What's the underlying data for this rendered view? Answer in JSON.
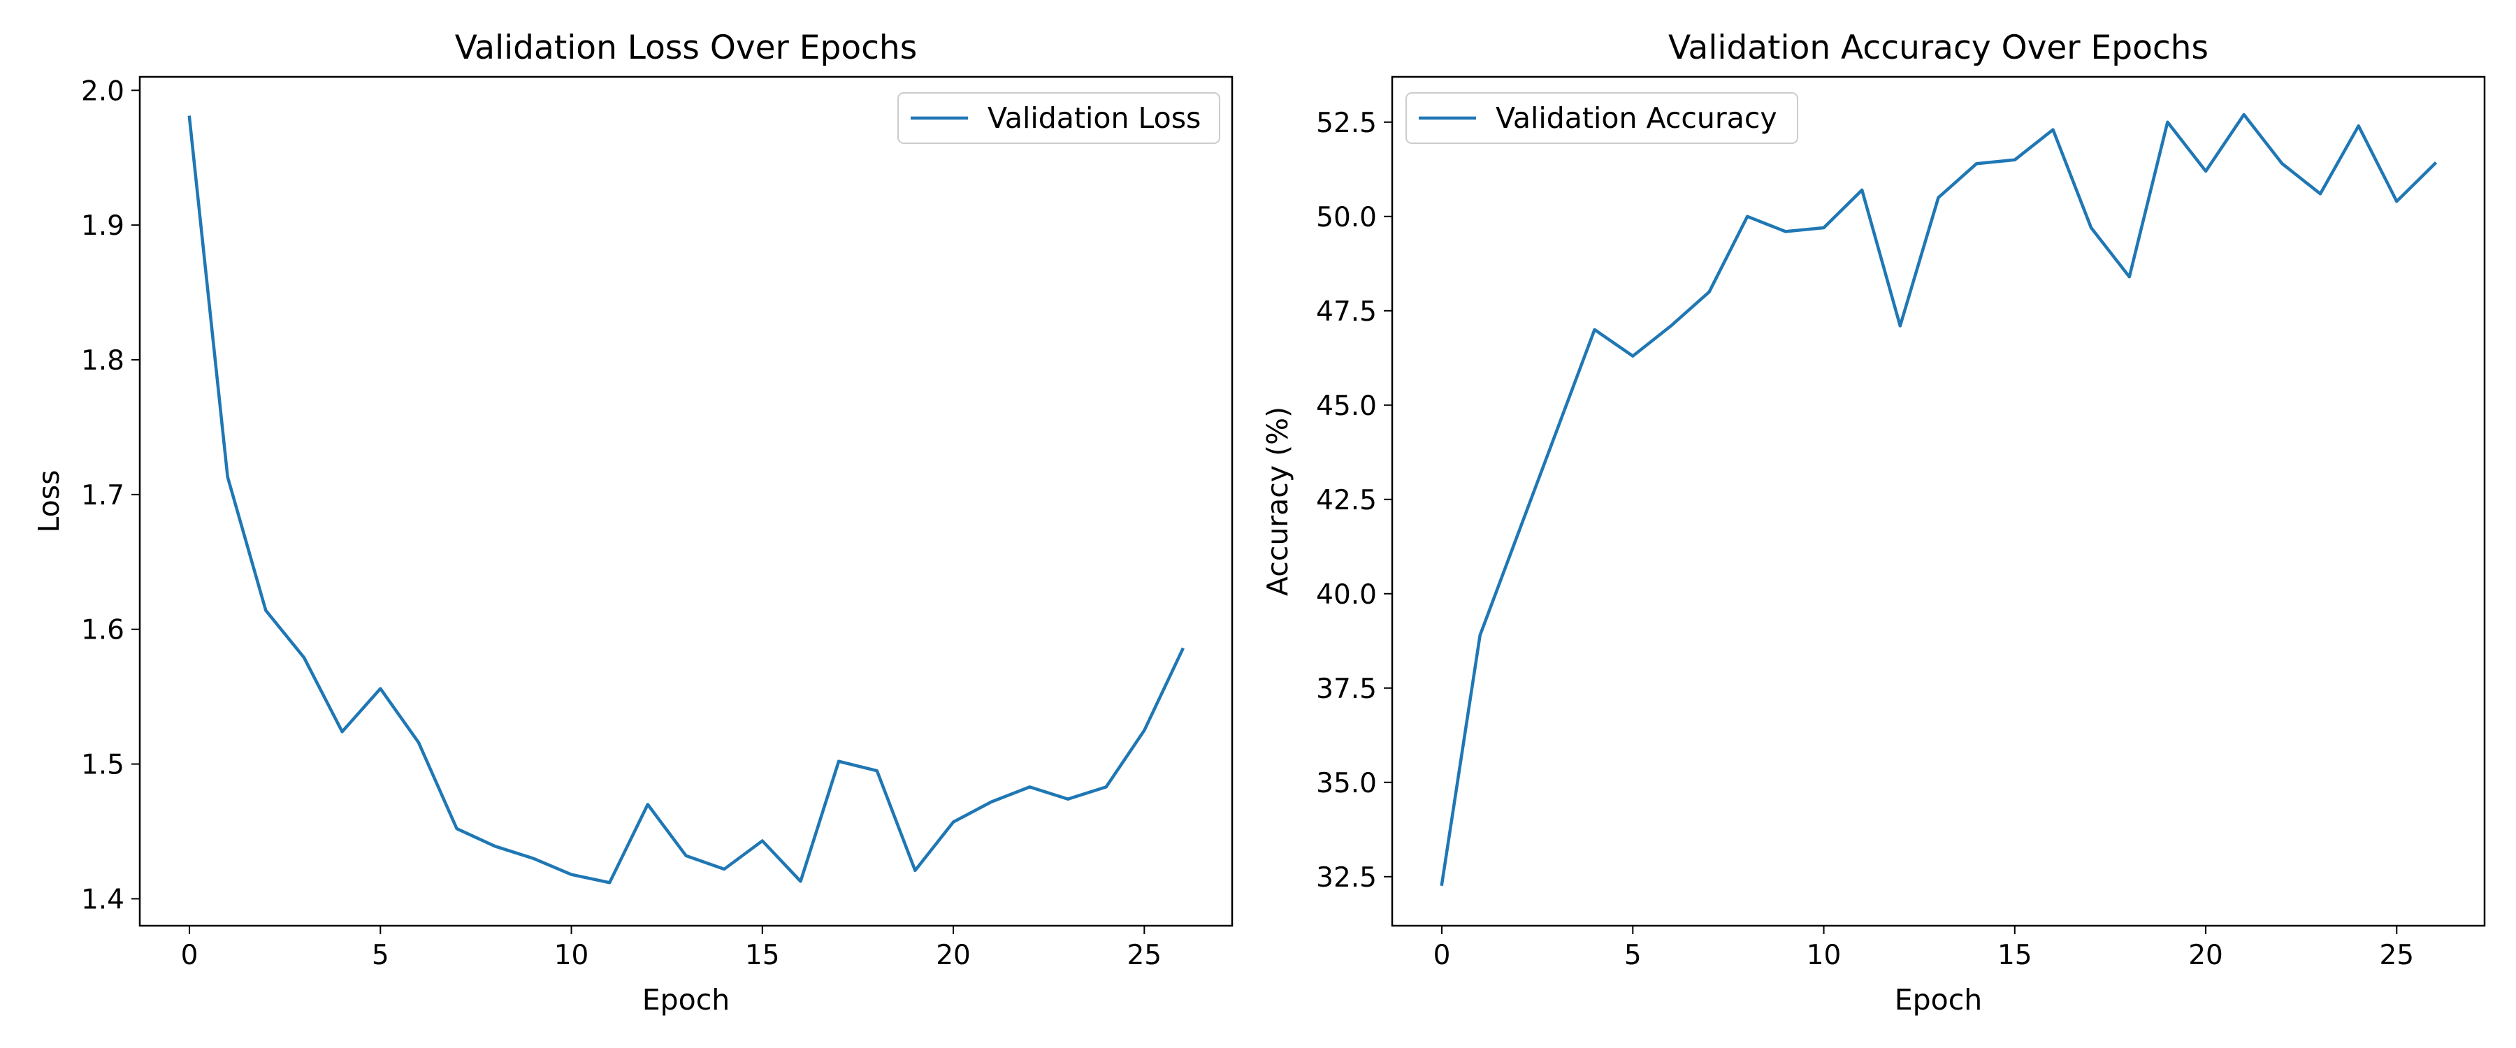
{
  "chart_data": [
    {
      "type": "line",
      "title": "Validation Loss Over Epochs",
      "xlabel": "Epoch",
      "ylabel": "Loss",
      "xlim": [
        -1.3,
        27.3
      ],
      "ylim": [
        1.38,
        2.01
      ],
      "xticks": [
        0,
        5,
        10,
        15,
        20,
        25
      ],
      "xtick_labels": [
        "0",
        "5",
        "10",
        "15",
        "20",
        "25"
      ],
      "yticks": [
        1.4,
        1.5,
        1.6,
        1.7,
        1.8,
        1.9,
        2.0
      ],
      "ytick_labels": [
        "1.4",
        "1.5",
        "1.6",
        "1.7",
        "1.8",
        "1.9",
        "2.0"
      ],
      "grid": false,
      "legend_position": "top-right",
      "series": [
        {
          "name": "Validation Loss",
          "color": "#1f77b4",
          "x": [
            0,
            1,
            2,
            3,
            4,
            5,
            6,
            7,
            8,
            9,
            10,
            11,
            12,
            13,
            14,
            15,
            16,
            17,
            18,
            19,
            20,
            21,
            22,
            23,
            24,
            25,
            26
          ],
          "y": [
            1.98,
            1.713,
            1.614,
            1.579,
            1.524,
            1.556,
            1.516,
            1.452,
            1.439,
            1.43,
            1.418,
            1.412,
            1.47,
            1.432,
            1.422,
            1.443,
            1.413,
            1.502,
            1.495,
            1.421,
            1.457,
            1.472,
            1.483,
            1.474,
            1.483,
            1.525,
            1.585
          ]
        }
      ]
    },
    {
      "type": "line",
      "title": "Validation Accuracy Over Epochs",
      "xlabel": "Epoch",
      "ylabel": "Accuracy (%)",
      "xlim": [
        -1.3,
        27.3
      ],
      "ylim": [
        31.2,
        53.7
      ],
      "xticks": [
        0,
        5,
        10,
        15,
        20,
        25
      ],
      "xtick_labels": [
        "0",
        "5",
        "10",
        "15",
        "20",
        "25"
      ],
      "yticks": [
        32.5,
        35.0,
        37.5,
        40.0,
        42.5,
        45.0,
        47.5,
        50.0,
        52.5
      ],
      "ytick_labels": [
        "32.5",
        "35.0",
        "37.5",
        "40.0",
        "42.5",
        "45.0",
        "47.5",
        "50.0",
        "52.5"
      ],
      "grid": false,
      "legend_position": "top-left",
      "series": [
        {
          "name": "Validation Accuracy",
          "color": "#1f77b4",
          "x": [
            0,
            1,
            2,
            3,
            4,
            5,
            6,
            7,
            8,
            9,
            10,
            11,
            12,
            13,
            14,
            15,
            16,
            17,
            18,
            19,
            20,
            21,
            22,
            23,
            24,
            25,
            26
          ],
          "y": [
            32.3,
            38.9,
            41.6,
            44.3,
            47.0,
            46.3,
            47.1,
            48.0,
            50.0,
            49.6,
            49.7,
            50.7,
            47.1,
            50.5,
            51.4,
            51.5,
            52.3,
            49.7,
            48.4,
            52.5,
            51.2,
            52.7,
            51.4,
            50.6,
            52.4,
            50.4,
            51.4
          ]
        }
      ]
    }
  ]
}
